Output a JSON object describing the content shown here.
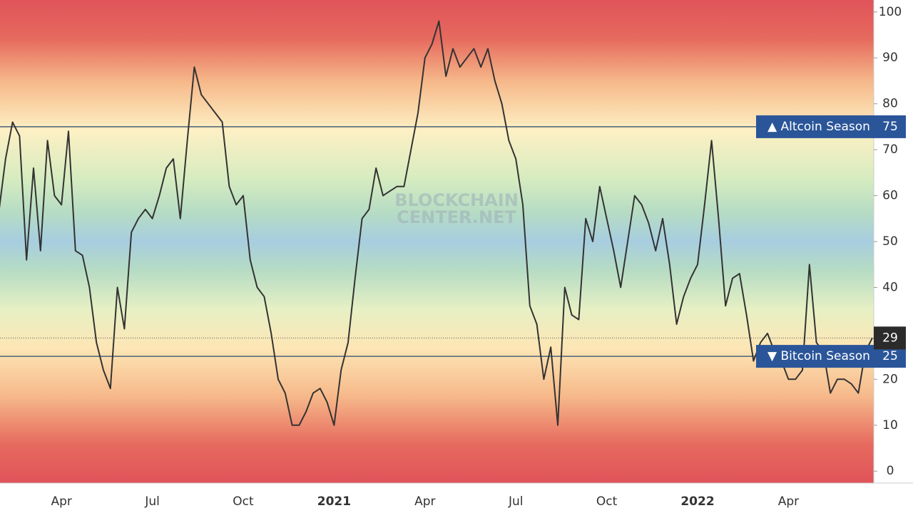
{
  "chart_data": {
    "type": "line",
    "categories": [
      null,
      null,
      null,
      null,
      null,
      null,
      null,
      null,
      null,
      "Apr",
      null,
      null,
      null,
      null,
      null,
      null,
      null,
      null,
      null,
      null,
      null,
      null,
      "Jul",
      null,
      null,
      null,
      null,
      null,
      null,
      null,
      null,
      null,
      null,
      null,
      null,
      "Oct",
      null,
      null,
      null,
      null,
      null,
      null,
      null,
      null,
      null,
      null,
      null,
      null,
      "2021",
      null,
      null,
      null,
      null,
      null,
      null,
      null,
      null,
      null,
      null,
      null,
      null,
      "Apr",
      null,
      null,
      null,
      null,
      null,
      null,
      null,
      null,
      null,
      null,
      null,
      null,
      "Jul",
      null,
      null,
      null,
      null,
      null,
      null,
      null,
      null,
      null,
      null,
      null,
      null,
      "Oct",
      null,
      null,
      null,
      null,
      null,
      null,
      null,
      null,
      null,
      null,
      null,
      null,
      "2022",
      null,
      null,
      null,
      null,
      null,
      null,
      null,
      null,
      null,
      null,
      null,
      null,
      "Apr",
      null,
      null,
      null,
      null,
      null,
      null,
      null,
      null,
      null,
      null,
      null,
      null
    ],
    "bold_categories": [
      "2021",
      "2022"
    ],
    "series": [
      {
        "color": "#333333",
        "values": [
          56,
          68,
          76,
          73,
          46,
          66,
          48,
          72,
          60,
          58,
          74,
          48,
          47,
          40,
          28,
          22,
          18,
          40,
          31,
          52,
          55,
          57,
          55,
          60,
          66,
          68,
          55,
          72,
          88,
          82,
          80,
          78,
          76,
          62,
          58,
          60,
          46,
          40,
          38,
          30,
          20,
          17,
          10,
          10,
          13,
          17,
          18,
          15,
          10,
          22,
          28,
          42,
          55,
          57,
          66,
          60,
          61,
          62,
          62,
          70,
          78,
          90,
          93,
          98,
          86,
          92,
          88,
          90,
          92,
          88,
          92,
          85,
          80,
          72,
          68,
          58,
          36,
          32,
          20,
          27,
          10,
          40,
          34,
          33,
          55,
          50,
          62,
          55,
          48,
          40,
          50,
          60,
          58,
          54,
          48,
          55,
          45,
          32,
          38,
          42,
          45,
          58,
          72,
          55,
          36,
          42,
          43,
          34,
          24,
          28,
          30,
          26,
          24,
          20,
          20,
          22,
          45,
          28,
          26,
          17,
          20,
          20,
          19,
          17,
          26,
          29
        ]
      }
    ],
    "ylim": [
      -2.6,
      102.6
    ],
    "yticks": [
      0,
      10,
      20,
      30,
      40,
      50,
      60,
      70,
      80,
      90,
      100
    ],
    "levels": [
      {
        "value": 75,
        "label": "▲ Altcoin Season"
      },
      {
        "value": 25,
        "label": "▼ Bitcoin Season"
      }
    ],
    "watermark": [
      "BLOCKCHAIN",
      "CENTER.NET"
    ]
  }
}
